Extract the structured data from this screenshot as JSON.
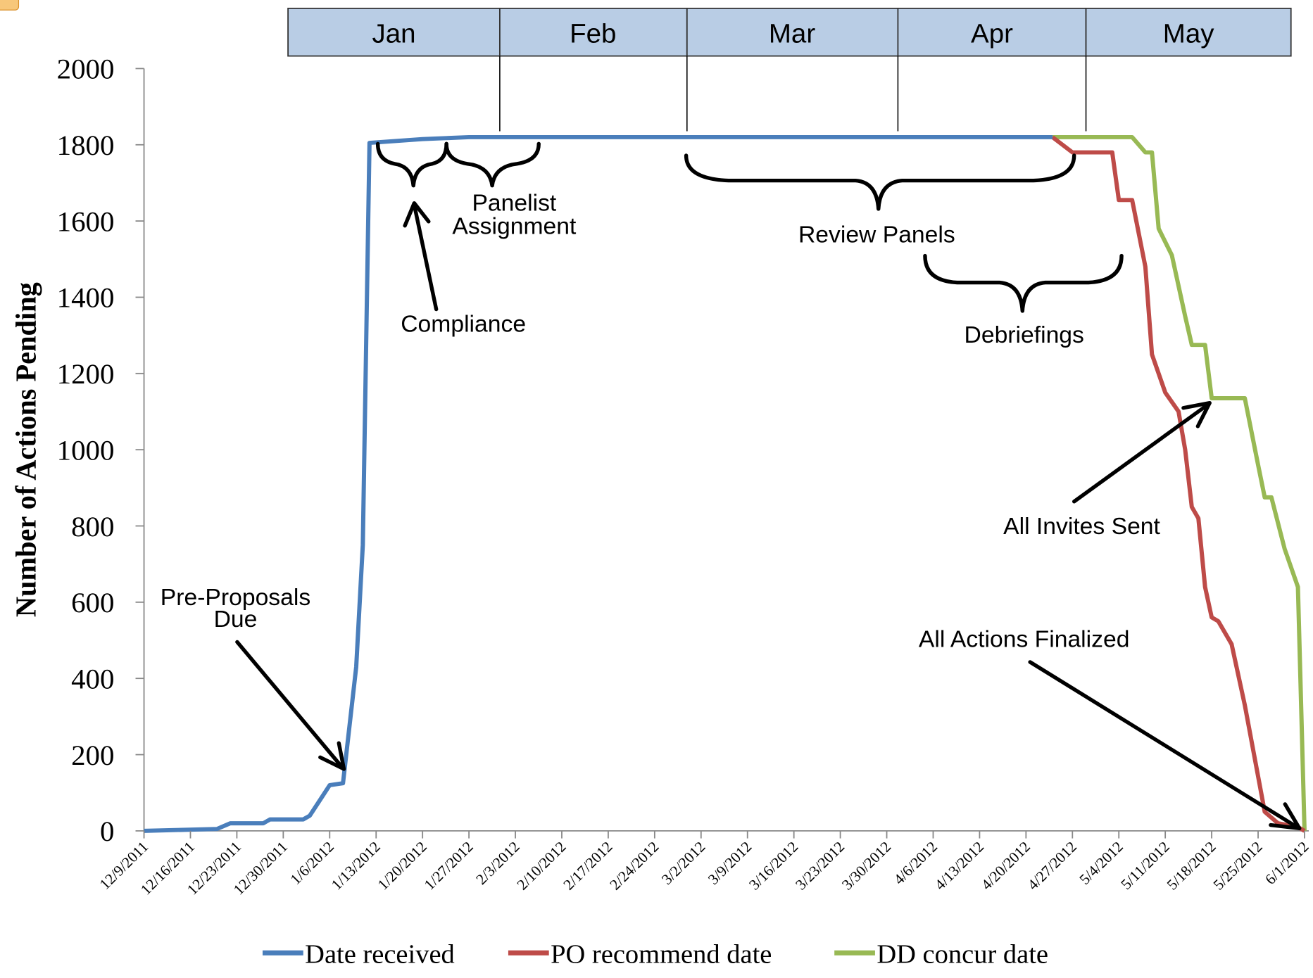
{
  "chart_data": {
    "type": "line",
    "y_label": "Number of Actions Pending",
    "xlim": [
      "12/9/2011",
      "6/1/2012"
    ],
    "xticks": [
      "12/9/2011",
      "12/16/2011",
      "12/23/2011",
      "12/30/2011",
      "1/6/2012",
      "1/13/2012",
      "1/20/2012",
      "1/27/2012",
      "2/3/2012",
      "2/10/2012",
      "2/17/2012",
      "2/24/2012",
      "3/2/2012",
      "3/9/2012",
      "3/16/2012",
      "3/23/2012",
      "3/30/2012",
      "4/6/2012",
      "4/13/2012",
      "4/20/2012",
      "4/27/2012",
      "5/4/2012",
      "5/11/2012",
      "5/18/2012",
      "5/25/2012",
      "6/1/2012"
    ],
    "ylim": [
      0,
      2000
    ],
    "yticks": [
      0,
      200,
      400,
      600,
      800,
      1000,
      1200,
      1400,
      1600,
      1800,
      2000
    ],
    "months": [
      "Jan",
      "Feb",
      "Mar",
      "Apr",
      "May"
    ],
    "annotations": [
      "Pre-Proposals",
      "Due",
      "Panelist",
      "Assignment",
      "Compliance",
      "Review Panels",
      "Debriefings",
      "All Invites Sent",
      "All Actions Finalized"
    ],
    "series": [
      {
        "name": "Date received",
        "color": "#4a7ebb",
        "x": [
          "12/9/2011",
          "12/20/2011",
          "12/22/2011",
          "12/27/2011",
          "12/28/2011",
          "1/2/2012",
          "1/3/2012",
          "1/6/2012",
          "1/8/2012",
          "1/10/2012",
          "1/11/2012",
          "1/12/2012",
          "1/20/2012",
          "1/27/2012",
          "4/24/2012"
        ],
        "values": [
          0,
          5,
          20,
          20,
          30,
          30,
          40,
          120,
          125,
          430,
          750,
          1805,
          1815,
          1820,
          1820
        ]
      },
      {
        "name": "PO recommend date",
        "color": "#be4b48",
        "x": [
          "4/24/2012",
          "4/27/2012",
          "5/3/2012",
          "5/4/2012",
          "5/6/2012",
          "5/8/2012",
          "5/9/2012",
          "5/11/2012",
          "5/13/2012",
          "5/14/2012",
          "5/15/2012",
          "5/16/2012",
          "5/17/2012",
          "5/18/2012",
          "5/19/2012",
          "5/21/2012",
          "5/23/2012",
          "5/26/2012",
          "5/28/2012",
          "5/31/2012",
          "6/1/2012"
        ],
        "values": [
          1820,
          1780,
          1780,
          1655,
          1655,
          1480,
          1250,
          1150,
          1100,
          1000,
          850,
          820,
          640,
          560,
          550,
          490,
          330,
          50,
          20,
          10,
          0
        ]
      },
      {
        "name": "DD concur date",
        "color": "#98b954",
        "x": [
          "4/24/2012",
          "5/6/2012",
          "5/8/2012",
          "5/9/2012",
          "5/10/2012",
          "5/12/2012",
          "5/14/2012",
          "5/15/2012",
          "5/17/2012",
          "5/18/2012",
          "5/23/2012",
          "5/25/2012",
          "5/26/2012",
          "5/27/2012",
          "5/29/2012",
          "5/31/2012",
          "6/1/2012"
        ],
        "values": [
          1820,
          1820,
          1780,
          1780,
          1580,
          1510,
          1350,
          1275,
          1275,
          1135,
          1135,
          960,
          875,
          875,
          740,
          640,
          0
        ]
      }
    ]
  }
}
